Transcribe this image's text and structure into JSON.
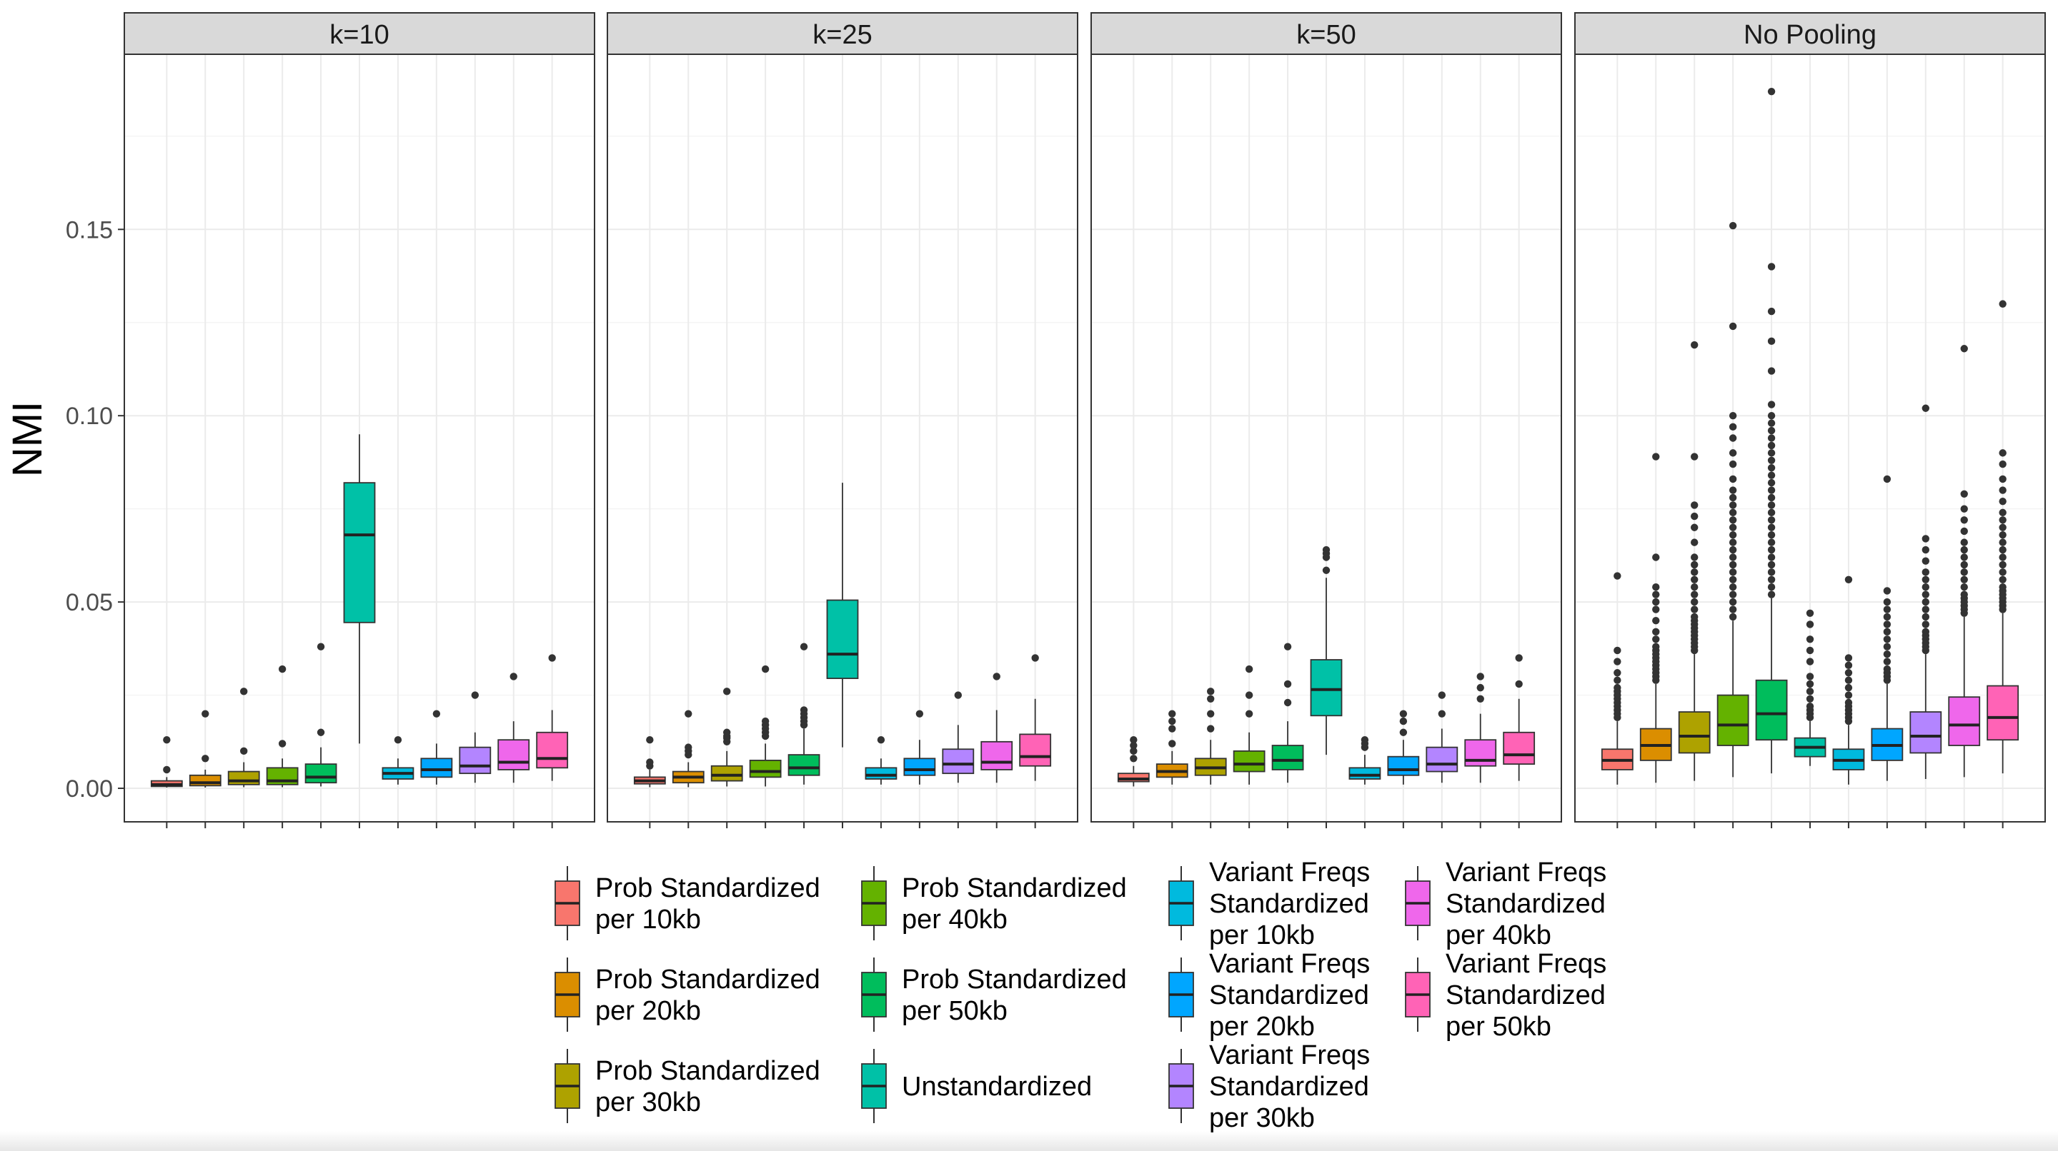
{
  "chart_data": {
    "type": "box",
    "ylabel": "NMI",
    "xlabel": "",
    "ylim": [
      -0.009,
      0.197
    ],
    "y_ticks": [
      0.0,
      0.05,
      0.1,
      0.15
    ],
    "y_tick_labels": [
      "0.00",
      "0.05",
      "0.10",
      "0.15"
    ],
    "grid": true,
    "legend_position": "bottom",
    "series": [
      {
        "name": "Prob Standardized per 10kb",
        "label_lines": [
          "Prob Standardized",
          "per 10kb"
        ],
        "color": "#F8766D"
      },
      {
        "name": "Prob Standardized per 20kb",
        "label_lines": [
          "Prob Standardized",
          "per 20kb"
        ],
        "color": "#DB8E00"
      },
      {
        "name": "Prob Standardized per 30kb",
        "label_lines": [
          "Prob Standardized",
          "per 30kb"
        ],
        "color": "#AEA200"
      },
      {
        "name": "Prob Standardized per 40kb",
        "label_lines": [
          "Prob Standardized",
          "per 40kb"
        ],
        "color": "#64B200"
      },
      {
        "name": "Prob Standardized per 50kb",
        "label_lines": [
          "Prob Standardized",
          "per 50kb"
        ],
        "color": "#00BD5C"
      },
      {
        "name": "Unstandardized",
        "label_lines": [
          "Unstandardized"
        ],
        "color": "#00C1A7"
      },
      {
        "name": "Variant Freqs Standardized per 10kb",
        "label_lines": [
          "Variant Freqs",
          "Standardized",
          "per 10kb"
        ],
        "color": "#00BADE"
      },
      {
        "name": "Variant Freqs Standardized per 20kb",
        "label_lines": [
          "Variant Freqs",
          "Standardized",
          "per 20kb"
        ],
        "color": "#00A6FF"
      },
      {
        "name": "Variant Freqs Standardized per 30kb",
        "label_lines": [
          "Variant Freqs",
          "Standardized",
          "per 30kb"
        ],
        "color": "#B385FF"
      },
      {
        "name": "Variant Freqs Standardized per 40kb",
        "label_lines": [
          "Variant Freqs",
          "Standardized",
          "per 40kb"
        ],
        "color": "#EF67EB"
      },
      {
        "name": "Variant Freqs Standardized per 50kb",
        "label_lines": [
          "Variant Freqs",
          "Standardized",
          "per 50kb"
        ],
        "color": "#FF63B6"
      }
    ],
    "panels": [
      {
        "title": "k=10",
        "boxes": [
          {
            "q1": 0.0005,
            "median": 0.001,
            "q3": 0.002,
            "lo": 0.0002,
            "hi": 0.003,
            "outliers": [
              0.005,
              0.013
            ]
          },
          {
            "q1": 0.0007,
            "median": 0.0015,
            "q3": 0.0035,
            "lo": 0.0002,
            "hi": 0.005,
            "outliers": [
              0.008,
              0.02
            ]
          },
          {
            "q1": 0.001,
            "median": 0.002,
            "q3": 0.0045,
            "lo": 0.0003,
            "hi": 0.007,
            "outliers": [
              0.01,
              0.026
            ]
          },
          {
            "q1": 0.001,
            "median": 0.002,
            "q3": 0.0055,
            "lo": 0.0003,
            "hi": 0.008,
            "outliers": [
              0.012,
              0.032
            ]
          },
          {
            "q1": 0.0015,
            "median": 0.003,
            "q3": 0.0065,
            "lo": 0.0005,
            "hi": 0.011,
            "outliers": [
              0.015,
              0.038
            ]
          },
          {
            "q1": 0.0445,
            "median": 0.068,
            "q3": 0.082,
            "lo": 0.012,
            "hi": 0.095,
            "outliers": []
          },
          {
            "q1": 0.0025,
            "median": 0.004,
            "q3": 0.0055,
            "lo": 0.001,
            "hi": 0.008,
            "outliers": [
              0.013
            ]
          },
          {
            "q1": 0.003,
            "median": 0.005,
            "q3": 0.008,
            "lo": 0.001,
            "hi": 0.012,
            "outliers": [
              0.02
            ]
          },
          {
            "q1": 0.004,
            "median": 0.006,
            "q3": 0.011,
            "lo": 0.0015,
            "hi": 0.015,
            "outliers": [
              0.025
            ]
          },
          {
            "q1": 0.005,
            "median": 0.007,
            "q3": 0.013,
            "lo": 0.0015,
            "hi": 0.018,
            "outliers": [
              0.03
            ]
          },
          {
            "q1": 0.0055,
            "median": 0.008,
            "q3": 0.015,
            "lo": 0.002,
            "hi": 0.021,
            "outliers": [
              0.035
            ]
          }
        ]
      },
      {
        "title": "k=25",
        "boxes": [
          {
            "q1": 0.0012,
            "median": 0.002,
            "q3": 0.003,
            "lo": 0.0003,
            "hi": 0.005,
            "outliers": [
              0.006,
              0.007,
              0.013
            ]
          },
          {
            "q1": 0.0015,
            "median": 0.003,
            "q3": 0.0045,
            "lo": 0.0003,
            "hi": 0.007,
            "outliers": [
              0.009,
              0.01,
              0.011,
              0.02
            ]
          },
          {
            "q1": 0.002,
            "median": 0.0035,
            "q3": 0.006,
            "lo": 0.0005,
            "hi": 0.01,
            "outliers": [
              0.0125,
              0.0135,
              0.014,
              0.015,
              0.026
            ]
          },
          {
            "q1": 0.003,
            "median": 0.0045,
            "q3": 0.0075,
            "lo": 0.0005,
            "hi": 0.012,
            "outliers": [
              0.014,
              0.015,
              0.016,
              0.017,
              0.018,
              0.032
            ]
          },
          {
            "q1": 0.0035,
            "median": 0.0055,
            "q3": 0.009,
            "lo": 0.001,
            "hi": 0.016,
            "outliers": [
              0.017,
              0.018,
              0.019,
              0.02,
              0.021,
              0.038
            ]
          },
          {
            "q1": 0.0295,
            "median": 0.036,
            "q3": 0.0505,
            "lo": 0.011,
            "hi": 0.082,
            "outliers": []
          },
          {
            "q1": 0.0025,
            "median": 0.0035,
            "q3": 0.0055,
            "lo": 0.001,
            "hi": 0.008,
            "outliers": [
              0.013
            ]
          },
          {
            "q1": 0.0035,
            "median": 0.005,
            "q3": 0.008,
            "lo": 0.001,
            "hi": 0.013,
            "outliers": [
              0.02
            ]
          },
          {
            "q1": 0.004,
            "median": 0.0065,
            "q3": 0.0105,
            "lo": 0.0015,
            "hi": 0.017,
            "outliers": [
              0.025
            ]
          },
          {
            "q1": 0.005,
            "median": 0.007,
            "q3": 0.0125,
            "lo": 0.0015,
            "hi": 0.021,
            "outliers": [
              0.03
            ]
          },
          {
            "q1": 0.006,
            "median": 0.0085,
            "q3": 0.0145,
            "lo": 0.002,
            "hi": 0.024,
            "outliers": [
              0.035
            ]
          }
        ]
      },
      {
        "title": "k=50",
        "boxes": [
          {
            "q1": 0.0018,
            "median": 0.0025,
            "q3": 0.004,
            "lo": 0.0005,
            "hi": 0.006,
            "outliers": [
              0.008,
              0.01,
              0.0115,
              0.013
            ]
          },
          {
            "q1": 0.003,
            "median": 0.0045,
            "q3": 0.0065,
            "lo": 0.001,
            "hi": 0.01,
            "outliers": [
              0.012,
              0.016,
              0.018,
              0.02
            ]
          },
          {
            "q1": 0.0035,
            "median": 0.0055,
            "q3": 0.008,
            "lo": 0.001,
            "hi": 0.013,
            "outliers": [
              0.016,
              0.02,
              0.024,
              0.026
            ]
          },
          {
            "q1": 0.0045,
            "median": 0.0065,
            "q3": 0.01,
            "lo": 0.001,
            "hi": 0.015,
            "outliers": [
              0.02,
              0.025,
              0.032
            ]
          },
          {
            "q1": 0.005,
            "median": 0.0075,
            "q3": 0.0115,
            "lo": 0.0015,
            "hi": 0.018,
            "outliers": [
              0.023,
              0.028,
              0.038
            ]
          },
          {
            "q1": 0.0195,
            "median": 0.0265,
            "q3": 0.0345,
            "lo": 0.009,
            "hi": 0.0565,
            "outliers": [
              0.0585,
              0.062,
              0.063,
              0.064
            ]
          },
          {
            "q1": 0.0025,
            "median": 0.0035,
            "q3": 0.0055,
            "lo": 0.001,
            "hi": 0.009,
            "outliers": [
              0.011,
              0.012,
              0.013
            ]
          },
          {
            "q1": 0.0035,
            "median": 0.005,
            "q3": 0.0085,
            "lo": 0.001,
            "hi": 0.013,
            "outliers": [
              0.015,
              0.018,
              0.02
            ]
          },
          {
            "q1": 0.0045,
            "median": 0.0065,
            "q3": 0.011,
            "lo": 0.0015,
            "hi": 0.016,
            "outliers": [
              0.02,
              0.025
            ]
          },
          {
            "q1": 0.006,
            "median": 0.0075,
            "q3": 0.013,
            "lo": 0.0015,
            "hi": 0.02,
            "outliers": [
              0.024,
              0.027,
              0.03
            ]
          },
          {
            "q1": 0.0065,
            "median": 0.009,
            "q3": 0.015,
            "lo": 0.002,
            "hi": 0.024,
            "outliers": [
              0.028,
              0.035
            ]
          }
        ]
      },
      {
        "title": "No Pooling",
        "boxes": [
          {
            "q1": 0.005,
            "median": 0.0075,
            "q3": 0.0105,
            "lo": 0.001,
            "hi": 0.018,
            "outliers": [
              0.019,
              0.02,
              0.021,
              0.022,
              0.023,
              0.024,
              0.025,
              0.026,
              0.027,
              0.029,
              0.031,
              0.034,
              0.037,
              0.057
            ]
          },
          {
            "q1": 0.0075,
            "median": 0.0115,
            "q3": 0.016,
            "lo": 0.0015,
            "hi": 0.028,
            "outliers": [
              0.029,
              0.03,
              0.031,
              0.032,
              0.033,
              0.034,
              0.035,
              0.036,
              0.037,
              0.038,
              0.04,
              0.042,
              0.045,
              0.048,
              0.05,
              0.052,
              0.054,
              0.062,
              0.089
            ]
          },
          {
            "q1": 0.0095,
            "median": 0.014,
            "q3": 0.0205,
            "lo": 0.002,
            "hi": 0.036,
            "outliers": [
              0.037,
              0.038,
              0.039,
              0.04,
              0.041,
              0.042,
              0.043,
              0.044,
              0.045,
              0.046,
              0.048,
              0.05,
              0.052,
              0.054,
              0.056,
              0.058,
              0.06,
              0.062,
              0.066,
              0.07,
              0.073,
              0.076,
              0.089,
              0.119
            ]
          },
          {
            "q1": 0.0115,
            "median": 0.017,
            "q3": 0.025,
            "lo": 0.003,
            "hi": 0.045,
            "outliers": [
              0.046,
              0.048,
              0.05,
              0.052,
              0.054,
              0.056,
              0.058,
              0.06,
              0.062,
              0.064,
              0.066,
              0.068,
              0.07,
              0.072,
              0.074,
              0.076,
              0.078,
              0.08,
              0.083,
              0.087,
              0.09,
              0.094,
              0.097,
              0.1,
              0.124,
              0.151
            ]
          },
          {
            "q1": 0.013,
            "median": 0.02,
            "q3": 0.029,
            "lo": 0.004,
            "hi": 0.051,
            "outliers": [
              0.052,
              0.054,
              0.056,
              0.058,
              0.06,
              0.062,
              0.064,
              0.066,
              0.068,
              0.07,
              0.072,
              0.074,
              0.076,
              0.078,
              0.08,
              0.082,
              0.084,
              0.086,
              0.088,
              0.09,
              0.092,
              0.094,
              0.096,
              0.098,
              0.1,
              0.103,
              0.112,
              0.12,
              0.128,
              0.14,
              0.187
            ]
          },
          {
            "q1": 0.0085,
            "median": 0.011,
            "q3": 0.0135,
            "lo": 0.006,
            "hi": 0.018,
            "outliers": [
              0.019,
              0.02,
              0.021,
              0.022,
              0.024,
              0.026,
              0.028,
              0.03,
              0.034,
              0.037,
              0.04,
              0.044,
              0.047
            ]
          },
          {
            "q1": 0.005,
            "median": 0.0075,
            "q3": 0.0105,
            "lo": 0.001,
            "hi": 0.017,
            "outliers": [
              0.018,
              0.019,
              0.02,
              0.021,
              0.022,
              0.023,
              0.025,
              0.027,
              0.029,
              0.031,
              0.033,
              0.035,
              0.056
            ]
          },
          {
            "q1": 0.0075,
            "median": 0.0115,
            "q3": 0.016,
            "lo": 0.002,
            "hi": 0.028,
            "outliers": [
              0.029,
              0.03,
              0.031,
              0.032,
              0.034,
              0.036,
              0.038,
              0.04,
              0.042,
              0.044,
              0.046,
              0.048,
              0.05,
              0.053,
              0.083
            ]
          },
          {
            "q1": 0.0095,
            "median": 0.014,
            "q3": 0.0205,
            "lo": 0.0025,
            "hi": 0.036,
            "outliers": [
              0.037,
              0.038,
              0.039,
              0.04,
              0.041,
              0.042,
              0.044,
              0.046,
              0.048,
              0.05,
              0.052,
              0.054,
              0.056,
              0.058,
              0.061,
              0.064,
              0.067,
              0.102
            ]
          },
          {
            "q1": 0.0115,
            "median": 0.017,
            "q3": 0.0245,
            "lo": 0.003,
            "hi": 0.046,
            "outliers": [
              0.047,
              0.048,
              0.049,
              0.05,
              0.051,
              0.052,
              0.054,
              0.056,
              0.058,
              0.06,
              0.062,
              0.064,
              0.066,
              0.069,
              0.072,
              0.075,
              0.079,
              0.118
            ]
          },
          {
            "q1": 0.013,
            "median": 0.019,
            "q3": 0.0275,
            "lo": 0.004,
            "hi": 0.047,
            "outliers": [
              0.048,
              0.049,
              0.05,
              0.051,
              0.052,
              0.053,
              0.054,
              0.056,
              0.058,
              0.06,
              0.062,
              0.064,
              0.066,
              0.068,
              0.07,
              0.072,
              0.074,
              0.077,
              0.08,
              0.083,
              0.087,
              0.09,
              0.13
            ]
          }
        ]
      }
    ]
  }
}
